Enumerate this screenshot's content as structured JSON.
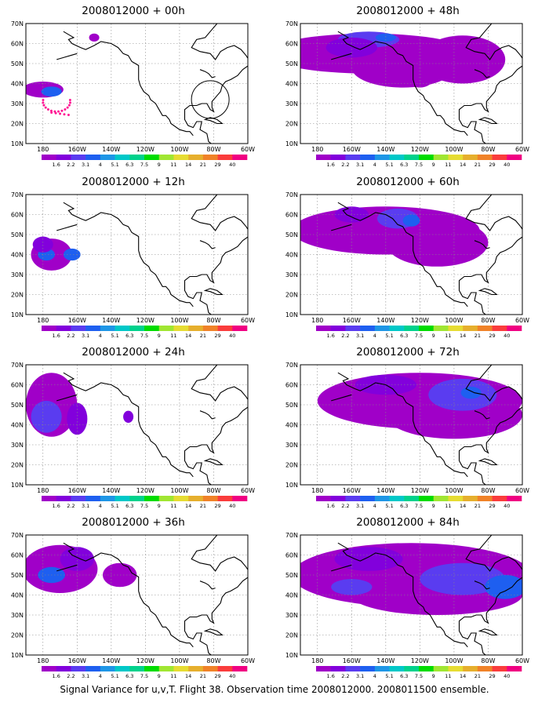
{
  "panels": [
    {
      "title": "2008012000 + 00h"
    },
    {
      "title": "2008012000 + 48h"
    },
    {
      "title": "2008012000 + 12h"
    },
    {
      "title": "2008012000 + 60h"
    },
    {
      "title": "2008012000 + 24h"
    },
    {
      "title": "2008012000 + 72h"
    },
    {
      "title": "2008012000 + 36h"
    },
    {
      "title": "2008012000 + 84h"
    }
  ],
  "lat_labels": [
    "70N",
    "60N",
    "50N",
    "40N",
    "30N",
    "20N",
    "10N"
  ],
  "lon_labels": [
    "180",
    "160W",
    "140W",
    "120W",
    "100W",
    "80W",
    "60W"
  ],
  "colorbar": {
    "labels": [
      "1.6",
      "2.2",
      "3.1",
      "4",
      "5.1",
      "6.3",
      "7.5",
      "9",
      "11",
      "14",
      "21",
      "29",
      "40"
    ],
    "colors": [
      "#a000c8",
      "#8200dc",
      "#5a3cf0",
      "#1e5ff0",
      "#1e96e6",
      "#00c8c8",
      "#00d28c",
      "#00dc00",
      "#a0e632",
      "#e6dc32",
      "#e6af2d",
      "#f08228",
      "#fa3c3c",
      "#f00082"
    ]
  },
  "footer": "Signal Variance for u,v,T. Flight 38. Observation time 2008012000. 2008011500 ensemble."
}
